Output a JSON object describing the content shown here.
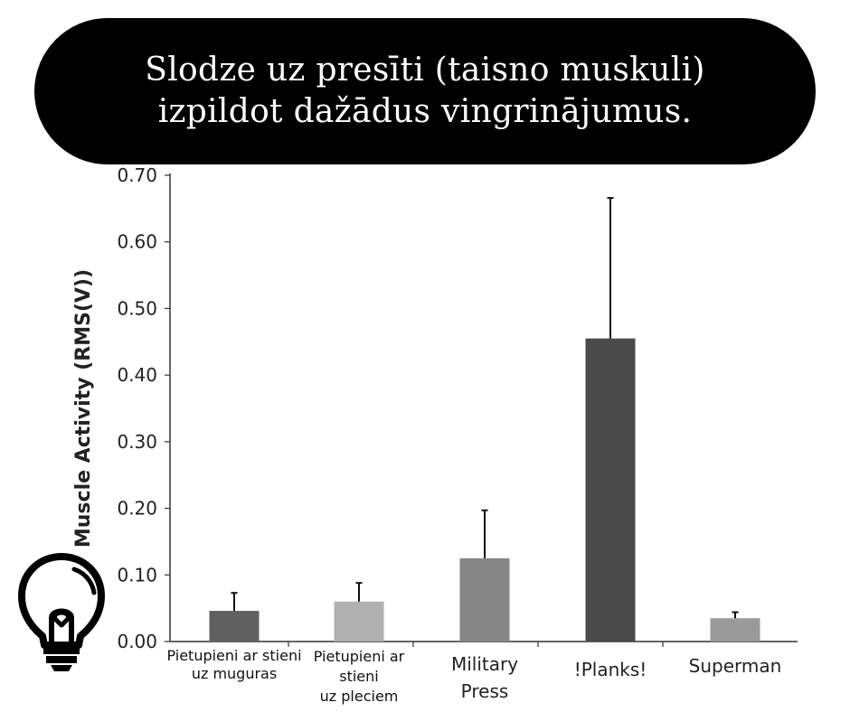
{
  "header": {
    "title_line1": "Slodze uz presīti (taisno muskuli)",
    "title_line2": "izpildot dažādus vingrinājumus."
  },
  "icons": {
    "corner_icon": "lightbulb-icon"
  },
  "chart_data": {
    "type": "bar",
    "title": "Slodze uz presīti (taisno muskuli) izpildot dažādus vingrinājumus.",
    "xlabel": "",
    "ylabel": "Muscle Activity (RMS(V))",
    "ylim": [
      0,
      0.7
    ],
    "yticks": [
      "0.00",
      "0.10",
      "0.20",
      "0.30",
      "0.40",
      "0.50",
      "0.60",
      "0.70"
    ],
    "grid": false,
    "categories": [
      "Pietupieni ar stieni uz muguras",
      "Pietupieni ar stieni uz pleciem",
      "Military Press",
      "!Planks!",
      "Superman"
    ],
    "category_label_lines": [
      [
        "Pietupieni ar stieni",
        "uz muguras"
      ],
      [
        "Pietupieni ar",
        "stieni",
        "uz pleciem"
      ],
      [
        "Military",
        "Press"
      ],
      [
        "!Planks!"
      ],
      [
        "Superman"
      ]
    ],
    "values": [
      0.046,
      0.06,
      0.125,
      0.455,
      0.035
    ],
    "error_upper": [
      0.073,
      0.088,
      0.197,
      0.666,
      0.044
    ],
    "bar_colors": [
      "#606060",
      "#b0b0b0",
      "#868686",
      "#4a4a4a",
      "#9a9a9a"
    ]
  }
}
